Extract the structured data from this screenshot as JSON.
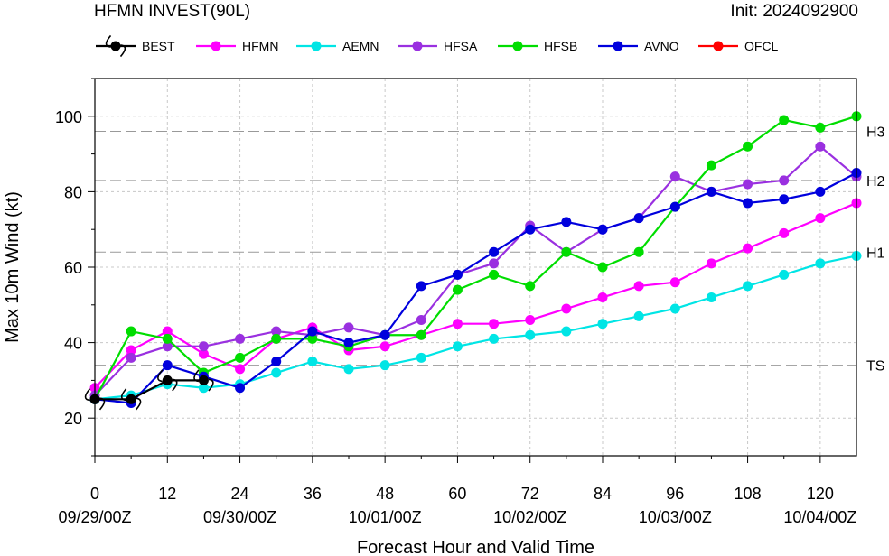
{
  "title": "HFMN INVEST(90L)",
  "init": "Init: 2024092900",
  "chart_data": {
    "type": "line",
    "xlabel": "Forecast Hour and Valid Time",
    "ylabel": "Max 10m Wind (kt)",
    "xlim": [
      0,
      126
    ],
    "ylim": [
      10,
      110
    ],
    "xticks": [
      0,
      12,
      24,
      36,
      48,
      60,
      72,
      84,
      96,
      108,
      120
    ],
    "yticks": [
      20,
      40,
      60,
      80,
      100
    ],
    "date_labels": [
      {
        "x": 0,
        "label": "09/29/00Z"
      },
      {
        "x": 24,
        "label": "09/30/00Z"
      },
      {
        "x": 48,
        "label": "10/01/00Z"
      },
      {
        "x": 72,
        "label": "10/02/00Z"
      },
      {
        "x": 96,
        "label": "10/03/00Z"
      },
      {
        "x": 120,
        "label": "10/04/00Z"
      }
    ],
    "thresholds": [
      {
        "label": "TS",
        "value": 34
      },
      {
        "label": "H1",
        "value": 64
      },
      {
        "label": "H2",
        "value": 83
      },
      {
        "label": "H3",
        "value": 96
      }
    ],
    "grid": true,
    "legend": "top",
    "series": [
      {
        "name": "BEST",
        "color": "#000000",
        "x": [
          0,
          6,
          12,
          18
        ],
        "y": [
          25,
          25,
          30,
          30
        ]
      },
      {
        "name": "HFMN",
        "color": "#ff00ff",
        "x": [
          0,
          6,
          12,
          18,
          24,
          30,
          36,
          42,
          48,
          54,
          60,
          66,
          72,
          78,
          84,
          90,
          96,
          102,
          108,
          114,
          120,
          126
        ],
        "y": [
          28,
          38,
          43,
          37,
          33,
          41,
          44,
          38,
          39,
          42,
          45,
          45,
          46,
          49,
          52,
          55,
          56,
          61,
          65,
          69,
          73,
          77
        ]
      },
      {
        "name": "AEMN",
        "color": "#00e5e5",
        "x": [
          0,
          6,
          12,
          18,
          24,
          30,
          36,
          42,
          48,
          54,
          60,
          66,
          72,
          78,
          84,
          90,
          96,
          102,
          108,
          114,
          120,
          126
        ],
        "y": [
          25,
          26,
          29,
          28,
          29,
          32,
          35,
          33,
          34,
          36,
          39,
          41,
          42,
          43,
          45,
          47,
          49,
          52,
          55,
          58,
          61,
          63
        ]
      },
      {
        "name": "HFSA",
        "color": "#9a30e0",
        "x": [
          0,
          6,
          12,
          18,
          24,
          30,
          36,
          42,
          48,
          54,
          60,
          66,
          72,
          78,
          84,
          90,
          96,
          102,
          108,
          114,
          120,
          126
        ],
        "y": [
          26,
          36,
          39,
          39,
          41,
          43,
          42,
          44,
          42,
          46,
          58,
          61,
          71,
          64,
          70,
          73,
          84,
          80,
          82,
          83,
          92,
          84
        ]
      },
      {
        "name": "HFSB",
        "color": "#00dd00",
        "x": [
          0,
          6,
          12,
          18,
          24,
          30,
          36,
          42,
          48,
          54,
          60,
          66,
          72,
          78,
          84,
          90,
          96,
          102,
          108,
          114,
          120,
          126
        ],
        "y": [
          25,
          43,
          41,
          32,
          36,
          41,
          41,
          39,
          42,
          42,
          54,
          58,
          55,
          64,
          60,
          64,
          76,
          87,
          92,
          99,
          97,
          100
        ]
      },
      {
        "name": "AVNO",
        "color": "#0000dd",
        "x": [
          0,
          6,
          12,
          18,
          24,
          30,
          36,
          42,
          48,
          54,
          60,
          66,
          72,
          78,
          84,
          90,
          96,
          102,
          108,
          114,
          120,
          126
        ],
        "y": [
          25,
          24,
          34,
          31,
          28,
          35,
          43,
          40,
          42,
          55,
          58,
          64,
          70,
          72,
          70,
          73,
          76,
          80,
          77,
          78,
          80,
          85
        ]
      },
      {
        "name": "OFCL",
        "color": "#ff0000",
        "x": [],
        "y": []
      }
    ]
  }
}
